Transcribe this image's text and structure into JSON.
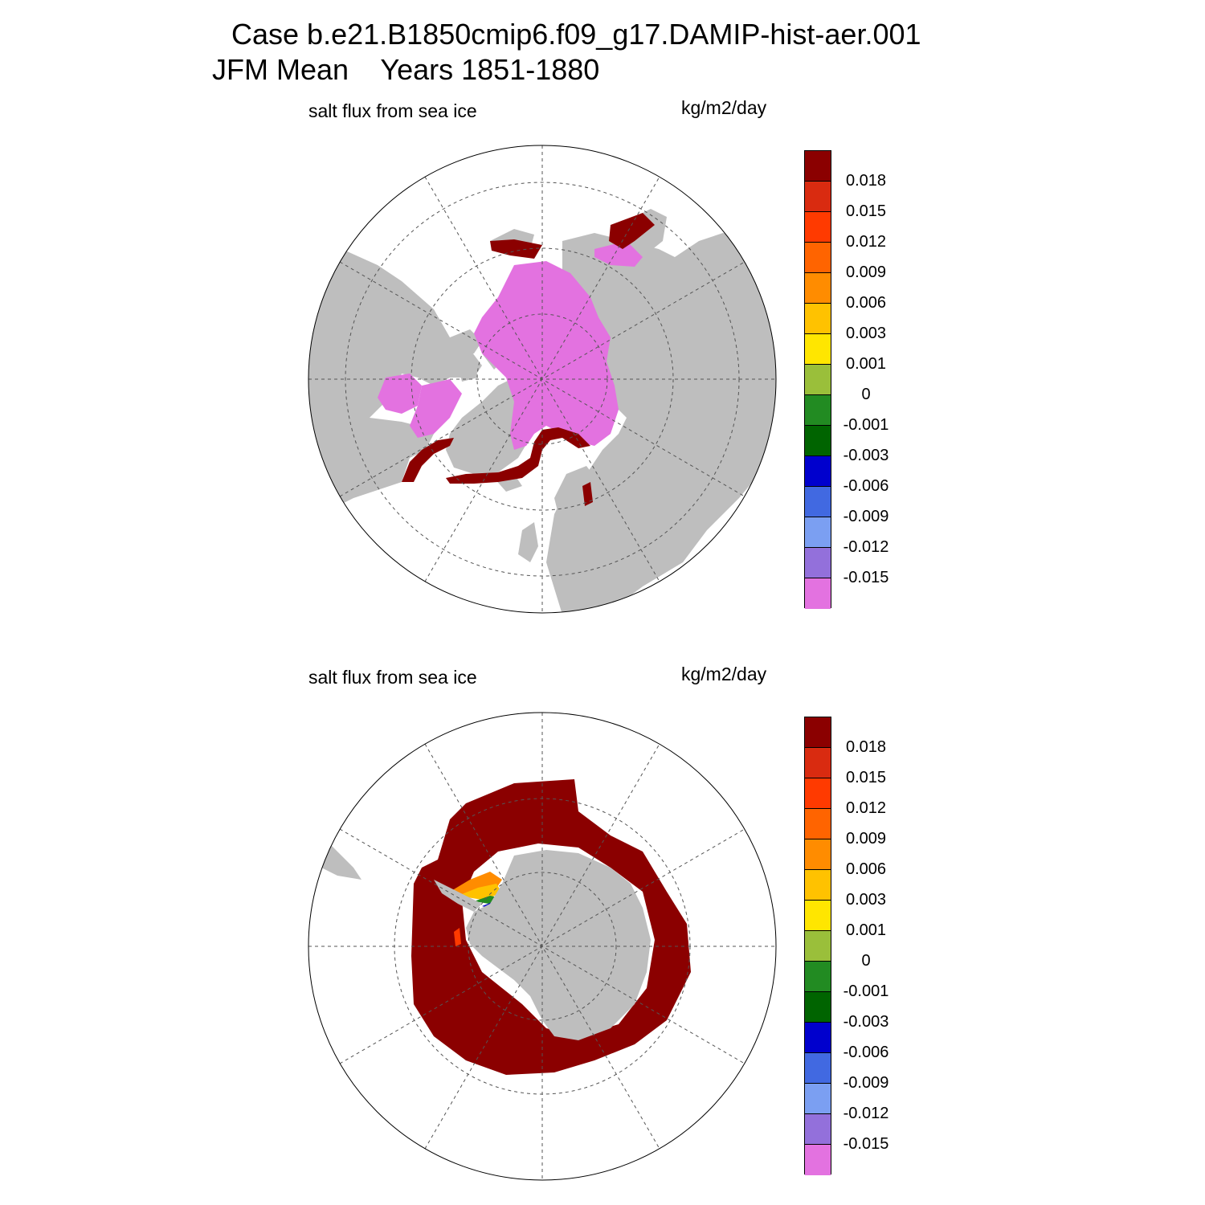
{
  "header": {
    "title": "Case b.e21.B1850cmip6.f09_g17.DAMIP-hist-aer.001",
    "subtitle": "JFM Mean    Years 1851-1880"
  },
  "panels": [
    {
      "left_label": "salt flux from sea ice",
      "right_label": "kg/m2/day",
      "hemisphere": "north"
    },
    {
      "left_label": "salt flux from sea ice",
      "right_label": "kg/m2/day",
      "hemisphere": "south"
    }
  ],
  "colorbar": {
    "labels": [
      "0.018",
      "0.015",
      "0.012",
      "0.009",
      "0.006",
      "0.003",
      "0.001",
      "0",
      "-0.001",
      "-0.003",
      "-0.006",
      "-0.009",
      "-0.012",
      "-0.015"
    ],
    "colors": [
      "#8B0000",
      "#D92B10",
      "#FF3A00",
      "#FF6400",
      "#FF8C00",
      "#FFC200",
      "#FFE600",
      "#9ABF3A",
      "#228B22",
      "#006400",
      "#0000CD",
      "#4169E1",
      "#7B9FF2",
      "#9370DB",
      "#E372E0"
    ]
  },
  "map_colors": {
    "land": "#BEBEBE",
    "ocean": "#FFFFFF",
    "ice_negative": "#E372E0",
    "ice_positive": "#8B0000"
  }
}
